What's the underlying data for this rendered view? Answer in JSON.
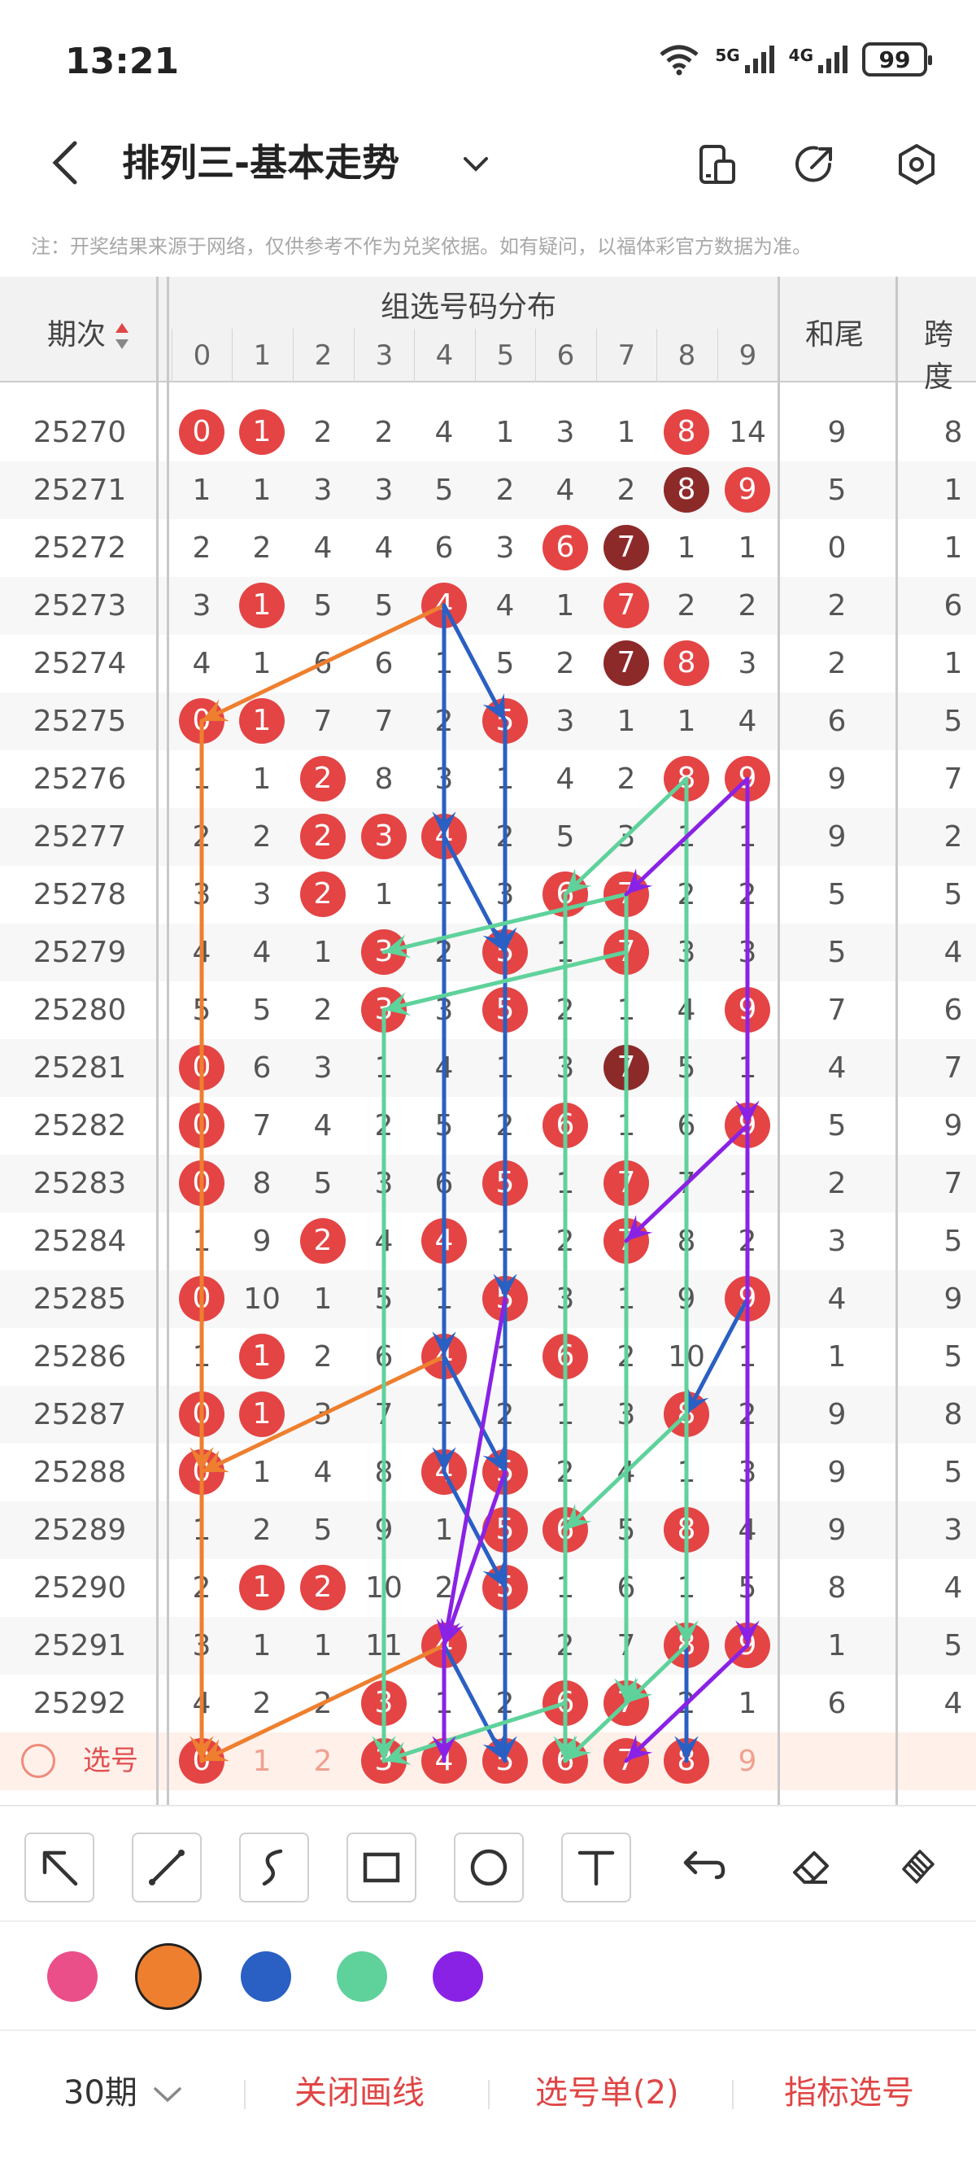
{
  "status_bar": {
    "time": "13:21",
    "net1": "5G",
    "net2": "4G",
    "battery": "99"
  },
  "header": {
    "title": "排列三-基本走势"
  },
  "notice": "注：开奖结果来源于网络，仅供参考不作为兑奖依据。如有疑问，以福体彩官方数据为准。",
  "table": {
    "col_issue": "期次",
    "group_title": "组选号码分布",
    "digit_headers": [
      "0",
      "1",
      "2",
      "3",
      "4",
      "5",
      "6",
      "7",
      "8",
      "9"
    ],
    "col_sum_tail": "和尾",
    "col_span": "跨度",
    "select_row_label": "选号",
    "rows": [
      {
        "issue": "25270",
        "cells": [
          "0",
          "1",
          "2",
          "2",
          "4",
          "1",
          "3",
          "1",
          "8",
          "14"
        ],
        "sum_tail": "9",
        "span": "8"
      },
      {
        "issue": "25271",
        "cells": [
          "1",
          "1",
          "3",
          "3",
          "5",
          "2",
          "4",
          "2",
          "8",
          "9"
        ],
        "sum_tail": "5",
        "span": "1"
      },
      {
        "issue": "25272",
        "cells": [
          "2",
          "2",
          "4",
          "4",
          "6",
          "3",
          "6",
          "7",
          "1",
          "1"
        ],
        "sum_tail": "0",
        "span": "1"
      },
      {
        "issue": "25273",
        "cells": [
          "3",
          "1",
          "5",
          "5",
          "4",
          "4",
          "1",
          "7",
          "2",
          "2"
        ],
        "sum_tail": "2",
        "span": "6"
      },
      {
        "issue": "25274",
        "cells": [
          "4",
          "1",
          "6",
          "6",
          "1",
          "5",
          "2",
          "7",
          "8",
          "3"
        ],
        "sum_tail": "2",
        "span": "1"
      },
      {
        "issue": "25275",
        "cells": [
          "0",
          "1",
          "7",
          "7",
          "2",
          "5",
          "3",
          "1",
          "1",
          "4"
        ],
        "sum_tail": "6",
        "span": "5"
      },
      {
        "issue": "25276",
        "cells": [
          "1",
          "1",
          "2",
          "8",
          "3",
          "1",
          "4",
          "2",
          "8",
          "9"
        ],
        "sum_tail": "9",
        "span": "7"
      },
      {
        "issue": "25277",
        "cells": [
          "2",
          "2",
          "2",
          "3",
          "4",
          "2",
          "5",
          "3",
          "1",
          "1"
        ],
        "sum_tail": "9",
        "span": "2"
      },
      {
        "issue": "25278",
        "cells": [
          "3",
          "3",
          "2",
          "1",
          "1",
          "3",
          "6",
          "7",
          "2",
          "2"
        ],
        "sum_tail": "5",
        "span": "5"
      },
      {
        "issue": "25279",
        "cells": [
          "4",
          "4",
          "1",
          "3",
          "2",
          "5",
          "1",
          "7",
          "3",
          "3"
        ],
        "sum_tail": "5",
        "span": "4"
      },
      {
        "issue": "25280",
        "cells": [
          "5",
          "5",
          "2",
          "3",
          "3",
          "5",
          "2",
          "1",
          "4",
          "9"
        ],
        "sum_tail": "7",
        "span": "6"
      },
      {
        "issue": "25281",
        "cells": [
          "0",
          "6",
          "3",
          "1",
          "4",
          "1",
          "3",
          "7",
          "5",
          "1"
        ],
        "sum_tail": "4",
        "span": "7"
      },
      {
        "issue": "25282",
        "cells": [
          "0",
          "7",
          "4",
          "2",
          "5",
          "2",
          "6",
          "1",
          "6",
          "9"
        ],
        "sum_tail": "5",
        "span": "9"
      },
      {
        "issue": "25283",
        "cells": [
          "0",
          "8",
          "5",
          "3",
          "6",
          "5",
          "1",
          "7",
          "7",
          "1"
        ],
        "sum_tail": "2",
        "span": "7"
      },
      {
        "issue": "25284",
        "cells": [
          "1",
          "9",
          "2",
          "4",
          "4",
          "1",
          "2",
          "7",
          "8",
          "2"
        ],
        "sum_tail": "3",
        "span": "5"
      },
      {
        "issue": "25285",
        "cells": [
          "0",
          "10",
          "1",
          "5",
          "1",
          "5",
          "3",
          "1",
          "9",
          "9"
        ],
        "sum_tail": "4",
        "span": "9"
      },
      {
        "issue": "25286",
        "cells": [
          "1",
          "1",
          "2",
          "6",
          "4",
          "1",
          "6",
          "2",
          "10",
          "1"
        ],
        "sum_tail": "1",
        "span": "5"
      },
      {
        "issue": "25287",
        "cells": [
          "0",
          "1",
          "3",
          "7",
          "1",
          "2",
          "1",
          "3",
          "8",
          "2"
        ],
        "sum_tail": "9",
        "span": "8"
      },
      {
        "issue": "25288",
        "cells": [
          "0",
          "1",
          "4",
          "8",
          "4",
          "5",
          "2",
          "4",
          "1",
          "3"
        ],
        "sum_tail": "9",
        "span": "5"
      },
      {
        "issue": "25289",
        "cells": [
          "1",
          "2",
          "5",
          "9",
          "1",
          "5",
          "6",
          "5",
          "8",
          "4"
        ],
        "sum_tail": "9",
        "span": "3"
      },
      {
        "issue": "25290",
        "cells": [
          "2",
          "1",
          "2",
          "10",
          "2",
          "5",
          "1",
          "6",
          "1",
          "5"
        ],
        "sum_tail": "8",
        "span": "4"
      },
      {
        "issue": "25291",
        "cells": [
          "3",
          "1",
          "1",
          "11",
          "4",
          "1",
          "2",
          "7",
          "8",
          "9"
        ],
        "sum_tail": "1",
        "span": "5"
      },
      {
        "issue": "25292",
        "cells": [
          "4",
          "2",
          "2",
          "3",
          "1",
          "2",
          "6",
          "7",
          "2",
          "1"
        ],
        "sum_tail": "6",
        "span": "4"
      }
    ],
    "select_row": [
      "0",
      "1",
      "2",
      "3",
      "4",
      "5",
      "6",
      "7",
      "8",
      "9"
    ]
  },
  "colors": {
    "ball_red": "#e44444",
    "ball_dark": "#8c2a2a",
    "swatches": [
      "#ea4f8a",
      "#ee7f2f",
      "#2a5fc4",
      "#5fd29b",
      "#8a22e6"
    ],
    "selected_swatch": "#ee7f2f"
  },
  "toolbar": {
    "tools": [
      "arrow-tool-icon",
      "line-tool-icon",
      "curve-tool-icon",
      "rectangle-tool-icon",
      "circle-tool-icon",
      "text-tool-icon",
      "undo-icon",
      "eraser-icon",
      "clear-all-icon"
    ]
  },
  "bottom_bar": {
    "period": "30期",
    "close_drawing": "关闭画线",
    "selection_list": "选号单(2)",
    "indicator_select": "指标选号"
  }
}
